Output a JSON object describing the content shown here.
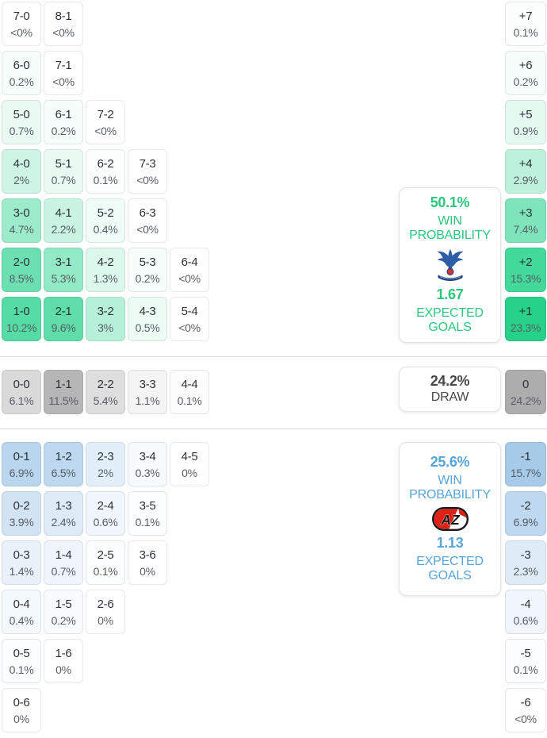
{
  "chart_data": {
    "type": "heatmap",
    "legend_position": "right-middle-panels",
    "home": {
      "accent": "#2bc77f",
      "win_probability": "50.1%",
      "win_probability_label": "WIN PROBABILITY",
      "expected_goals": "1.67",
      "expected_goals_label": "EXPECTED GOALS",
      "logo_icon": "crystal-palace-crest",
      "score_rows": [
        [
          {
            "score": "7-0",
            "prob": "<0%",
            "col": 1,
            "color": "#ffffff"
          },
          {
            "score": "8-1",
            "prob": "<0%",
            "col": 2,
            "color": "#ffffff"
          }
        ],
        [
          {
            "score": "6-0",
            "prob": "0.2%",
            "col": 1,
            "color": "#f7fdfb"
          },
          {
            "score": "7-1",
            "prob": "<0%",
            "col": 2,
            "color": "#ffffff"
          }
        ],
        [
          {
            "score": "5-0",
            "prob": "0.7%",
            "col": 1,
            "color": "#e9faf3"
          },
          {
            "score": "6-1",
            "prob": "0.2%",
            "col": 2,
            "color": "#f7fdfb"
          },
          {
            "score": "7-2",
            "prob": "<0%",
            "col": 3,
            "color": "#ffffff"
          }
        ],
        [
          {
            "score": "4-0",
            "prob": "2%",
            "col": 1,
            "color": "#cdf4e5"
          },
          {
            "score": "5-1",
            "prob": "0.7%",
            "col": 2,
            "color": "#e9faf3"
          },
          {
            "score": "6-2",
            "prob": "0.1%",
            "col": 3,
            "color": "#fbfefd"
          },
          {
            "score": "7-3",
            "prob": "<0%",
            "col": 4,
            "color": "#ffffff"
          }
        ],
        [
          {
            "score": "3-0",
            "prob": "4.7%",
            "col": 1,
            "color": "#9cebcb"
          },
          {
            "score": "4-1",
            "prob": "2.2%",
            "col": 2,
            "color": "#c9f3e2"
          },
          {
            "score": "5-2",
            "prob": "0.4%",
            "col": 3,
            "color": "#f0fcf7"
          },
          {
            "score": "6-3",
            "prob": "<0%",
            "col": 4,
            "color": "#ffffff"
          }
        ],
        [
          {
            "score": "2-0",
            "prob": "8.5%",
            "col": 1,
            "color": "#6ce0b2"
          },
          {
            "score": "3-1",
            "prob": "5.3%",
            "col": 2,
            "color": "#92e9c5"
          },
          {
            "score": "4-2",
            "prob": "1.3%",
            "col": 3,
            "color": "#dcf8ec"
          },
          {
            "score": "5-3",
            "prob": "0.2%",
            "col": 4,
            "color": "#f7fdfb"
          },
          {
            "score": "6-4",
            "prob": "<0%",
            "col": 5,
            "color": "#ffffff"
          }
        ],
        [
          {
            "score": "1-0",
            "prob": "10.2%",
            "col": 1,
            "color": "#55dba4"
          },
          {
            "score": "2-1",
            "prob": "9.6%",
            "col": 2,
            "color": "#5edda9"
          },
          {
            "score": "3-2",
            "prob": "3%",
            "col": 3,
            "color": "#b7f0d9"
          },
          {
            "score": "4-3",
            "prob": "0.5%",
            "col": 4,
            "color": "#edfbf5"
          },
          {
            "score": "5-4",
            "prob": "<0%",
            "col": 5,
            "color": "#ffffff"
          }
        ]
      ],
      "diff_cells": [
        {
          "diff": "+7",
          "prob": "0.1%",
          "color": "#fbfefd"
        },
        {
          "diff": "+6",
          "prob": "0.2%",
          "color": "#f7fdfb"
        },
        {
          "diff": "+5",
          "prob": "0.9%",
          "color": "#e4f9f0"
        },
        {
          "diff": "+4",
          "prob": "2.9%",
          "color": "#bdf1db"
        },
        {
          "diff": "+3",
          "prob": "7.4%",
          "color": "#7ee4bc"
        },
        {
          "diff": "+2",
          "prob": "15.3%",
          "color": "#43d99b"
        },
        {
          "diff": "+1",
          "prob": "23.3%",
          "color": "#26d288"
        }
      ]
    },
    "draw": {
      "accent": "#474747",
      "probability": "24.2%",
      "label": "DRAW",
      "score_cells": [
        {
          "score": "0-0",
          "prob": "6.1%",
          "col": 1,
          "color": "#dadada"
        },
        {
          "score": "1-1",
          "prob": "11.5%",
          "col": 2,
          "color": "#b6b6b6"
        },
        {
          "score": "2-2",
          "prob": "5.4%",
          "col": 3,
          "color": "#dedede"
        },
        {
          "score": "3-3",
          "prob": "1.1%",
          "col": 4,
          "color": "#f4f4f4"
        },
        {
          "score": "4-4",
          "prob": "0.1%",
          "col": 5,
          "color": "#fcfcfc"
        }
      ],
      "diff_cell": {
        "diff": "0",
        "prob": "24.2%",
        "color": "#adadad"
      }
    },
    "away": {
      "accent": "#57a4d8",
      "win_probability": "25.6%",
      "win_probability_label": "WIN PROBABILITY",
      "expected_goals": "1.13",
      "expected_goals_label": "EXPECTED GOALS",
      "logo_icon": "az-alkmaar-crest",
      "score_rows": [
        [
          {
            "score": "0-1",
            "prob": "6.9%",
            "col": 1,
            "color": "#b9d6ee"
          },
          {
            "score": "1-2",
            "prob": "6.5%",
            "col": 2,
            "color": "#bdd8ef"
          },
          {
            "score": "2-3",
            "prob": "2%",
            "col": 3,
            "color": "#e2eef8"
          },
          {
            "score": "3-4",
            "prob": "0.3%",
            "col": 4,
            "color": "#f7fafd"
          },
          {
            "score": "4-5",
            "prob": "0%",
            "col": 5,
            "color": "#ffffff"
          }
        ],
        [
          {
            "score": "0-2",
            "prob": "3.9%",
            "col": 1,
            "color": "#d2e4f4"
          },
          {
            "score": "1-3",
            "prob": "2.4%",
            "col": 2,
            "color": "#deebf7"
          },
          {
            "score": "2-4",
            "prob": "0.6%",
            "col": 3,
            "color": "#f0f6fb"
          },
          {
            "score": "3-5",
            "prob": "0.1%",
            "col": 4,
            "color": "#fbfdfe"
          }
        ],
        [
          {
            "score": "0-3",
            "prob": "1.4%",
            "col": 1,
            "color": "#e9f2fa"
          },
          {
            "score": "1-4",
            "prob": "0.7%",
            "col": 2,
            "color": "#eff5fb"
          },
          {
            "score": "2-5",
            "prob": "0.1%",
            "col": 3,
            "color": "#fbfdfe"
          },
          {
            "score": "3-6",
            "prob": "0%",
            "col": 4,
            "color": "#ffffff"
          }
        ],
        [
          {
            "score": "0-4",
            "prob": "0.4%",
            "col": 1,
            "color": "#f4f9fd"
          },
          {
            "score": "1-5",
            "prob": "0.2%",
            "col": 2,
            "color": "#f9fcfe"
          },
          {
            "score": "2-6",
            "prob": "0%",
            "col": 3,
            "color": "#ffffff"
          }
        ],
        [
          {
            "score": "0-5",
            "prob": "0.1%",
            "col": 1,
            "color": "#fbfdfe"
          },
          {
            "score": "1-6",
            "prob": "0%",
            "col": 2,
            "color": "#ffffff"
          }
        ],
        [
          {
            "score": "0-6",
            "prob": "0%",
            "col": 1,
            "color": "#ffffff"
          }
        ]
      ],
      "diff_cells": [
        {
          "diff": "-1",
          "prob": "15.7%",
          "color": "#a6cbe9"
        },
        {
          "diff": "-2",
          "prob": "6.9%",
          "color": "#bdd8ef"
        },
        {
          "diff": "-3",
          "prob": "2.3%",
          "color": "#dfecf7"
        },
        {
          "diff": "-4",
          "prob": "0.6%",
          "color": "#f0f6fb"
        },
        {
          "diff": "-5",
          "prob": "0.1%",
          "color": "#fbfdfe"
        },
        {
          "diff": "-6",
          "prob": "<0%",
          "color": "#ffffff"
        }
      ]
    }
  }
}
